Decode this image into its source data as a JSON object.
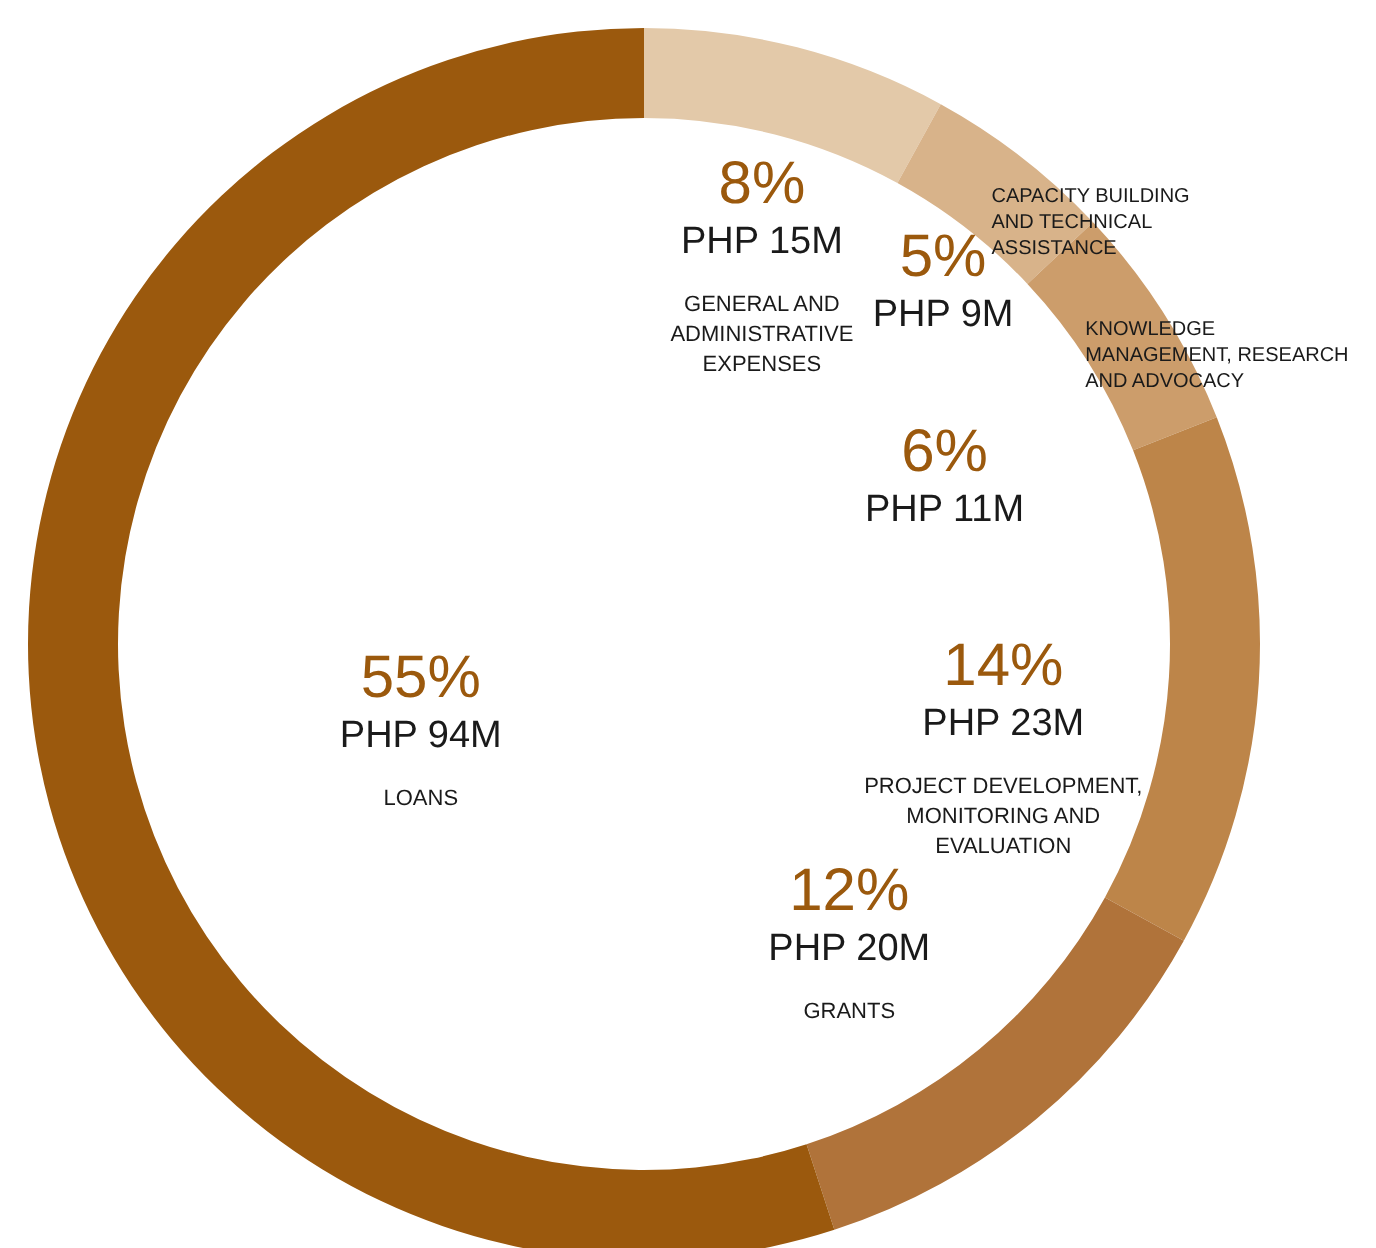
{
  "chart_data": {
    "type": "donut",
    "categories": [
      "GENERAL AND ADMINISTRATIVE EXPENSES",
      "CAPACITY BUILDING AND TECHNICAL ASSISTANCE",
      "KNOWLEDGE MANAGEMENT, RESEARCH AND ADVOCACY",
      "PROJECT DEVELOPMENT, MONITORING AND EVALUATION",
      "GRANTS",
      "LOANS"
    ],
    "values": [
      8,
      5,
      6,
      14,
      12,
      55
    ],
    "value_labels": [
      "8%\nPHP 15M",
      "5%\nPHP 9M",
      "6%\nPHP 11M",
      "14%\nPHP 23M",
      "12%\nPHP 20M",
      "55%\nPHP 94M"
    ],
    "colors": [
      "#e3c9a9",
      "#d8b38a",
      "#cc9d6b",
      "#bd8549",
      "#b0733a",
      "#9b590d"
    ]
  }
}
